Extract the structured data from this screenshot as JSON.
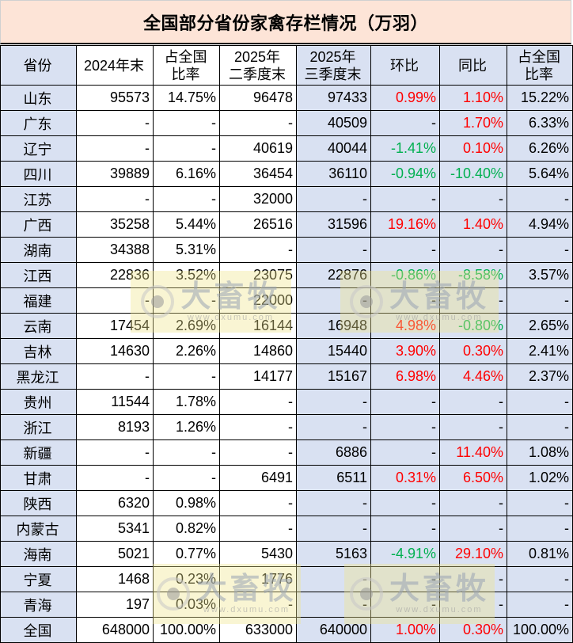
{
  "title": "全国部分省份家禽存栏情况（万羽）",
  "headers": [
    {
      "line1": "省份",
      "line2": ""
    },
    {
      "line1": "2024年末",
      "line2": ""
    },
    {
      "line1": "占全国",
      "line2": "比率"
    },
    {
      "line1": "2025年",
      "line2": "二季度末"
    },
    {
      "line1": "2025年",
      "line2": "三季度末"
    },
    {
      "line1": "环比",
      "line2": ""
    },
    {
      "line1": "同比",
      "line2": ""
    },
    {
      "line1": "占全国",
      "line2": "比率"
    }
  ],
  "rows": [
    {
      "province": "山东",
      "y2024": "95573",
      "share2024": "14.75%",
      "q2": "96478",
      "q3": "97433",
      "qoq": "0.99%",
      "yoy": "1.10%",
      "share_q3": "15.22%"
    },
    {
      "province": "广东",
      "y2024": "-",
      "share2024": "-",
      "q2": "-",
      "q3": "40509",
      "qoq": "-",
      "yoy": "1.70%",
      "share_q3": "6.33%"
    },
    {
      "province": "辽宁",
      "y2024": "-",
      "share2024": "-",
      "q2": "40619",
      "q3": "40044",
      "qoq": "-1.41%",
      "yoy": "0.10%",
      "share_q3": "6.26%"
    },
    {
      "province": "四川",
      "y2024": "39889",
      "share2024": "6.16%",
      "q2": "36454",
      "q3": "36110",
      "qoq": "-0.94%",
      "yoy": "-10.40%",
      "share_q3": "5.64%"
    },
    {
      "province": "江苏",
      "y2024": "-",
      "share2024": "-",
      "q2": "32000",
      "q3": "-",
      "qoq": "-",
      "yoy": "-",
      "share_q3": "-"
    },
    {
      "province": "广西",
      "y2024": "35258",
      "share2024": "5.44%",
      "q2": "26516",
      "q3": "31596",
      "qoq": "19.16%",
      "yoy": "1.40%",
      "share_q3": "4.94%"
    },
    {
      "province": "湖南",
      "y2024": "34388",
      "share2024": "5.31%",
      "q2": "-",
      "q3": "-",
      "qoq": "-",
      "yoy": "-",
      "share_q3": "-"
    },
    {
      "province": "江西",
      "y2024": "22836",
      "share2024": "3.52%",
      "q2": "23075",
      "q3": "22876",
      "qoq": "-0.86%",
      "yoy": "-8.58%",
      "share_q3": "3.57%"
    },
    {
      "province": "福建",
      "y2024": "-",
      "share2024": "-",
      "q2": "22000",
      "q3": "-",
      "qoq": "-",
      "yoy": "-",
      "share_q3": "-"
    },
    {
      "province": "云南",
      "y2024": "17454",
      "share2024": "2.69%",
      "q2": "16144",
      "q3": "16948",
      "qoq": "4.98%",
      "yoy": "-0.80%",
      "share_q3": "2.65%"
    },
    {
      "province": "吉林",
      "y2024": "14630",
      "share2024": "2.26%",
      "q2": "14860",
      "q3": "15440",
      "qoq": "3.90%",
      "yoy": "0.30%",
      "share_q3": "2.41%"
    },
    {
      "province": "黑龙江",
      "y2024": "-",
      "share2024": "-",
      "q2": "14177",
      "q3": "15167",
      "qoq": "6.98%",
      "yoy": "4.46%",
      "share_q3": "2.37%"
    },
    {
      "province": "贵州",
      "y2024": "11544",
      "share2024": "1.78%",
      "q2": "-",
      "q3": "-",
      "qoq": "-",
      "yoy": "-",
      "share_q3": "-"
    },
    {
      "province": "浙江",
      "y2024": "8193",
      "share2024": "1.26%",
      "q2": "-",
      "q3": "-",
      "qoq": "-",
      "yoy": "-",
      "share_q3": "-"
    },
    {
      "province": "新疆",
      "y2024": "-",
      "share2024": "-",
      "q2": "-",
      "q3": "6886",
      "qoq": "-",
      "yoy": "11.40%",
      "share_q3": "1.08%"
    },
    {
      "province": "甘肃",
      "y2024": "-",
      "share2024": "-",
      "q2": "6491",
      "q3": "6511",
      "qoq": "0.31%",
      "yoy": "6.50%",
      "share_q3": "1.02%"
    },
    {
      "province": "陕西",
      "y2024": "6320",
      "share2024": "0.98%",
      "q2": "-",
      "q3": "-",
      "qoq": "-",
      "yoy": "-",
      "share_q3": "-"
    },
    {
      "province": "内蒙古",
      "y2024": "5341",
      "share2024": "0.82%",
      "q2": "-",
      "q3": "-",
      "qoq": "-",
      "yoy": "-",
      "share_q3": "-"
    },
    {
      "province": "海南",
      "y2024": "5021",
      "share2024": "0.77%",
      "q2": "5430",
      "q3": "5163",
      "qoq": "-4.91%",
      "yoy": "29.10%",
      "share_q3": "0.81%"
    },
    {
      "province": "宁夏",
      "y2024": "1468",
      "share2024": "0.23%",
      "q2": "1776",
      "q3": "-",
      "qoq": "-",
      "yoy": "-",
      "share_q3": "-"
    },
    {
      "province": "青海",
      "y2024": "197",
      "share2024": "0.03%",
      "q2": "-",
      "q3": "-",
      "qoq": "-",
      "yoy": "-",
      "share_q3": "-"
    },
    {
      "province": "全国",
      "y2024": "648000",
      "share2024": "100.00%",
      "q2": "633000",
      "q3": "640000",
      "qoq": "1.00%",
      "yoy": "0.30%",
      "share_q3": "100.00%"
    }
  ],
  "watermark": {
    "brand": "大畜牧",
    "url": "www.dxumu.com"
  },
  "colors": {
    "title_bg": "#fde4d7",
    "header_blue": "#d9e1f2",
    "positive": "#ff0000",
    "negative": "#00b050"
  }
}
